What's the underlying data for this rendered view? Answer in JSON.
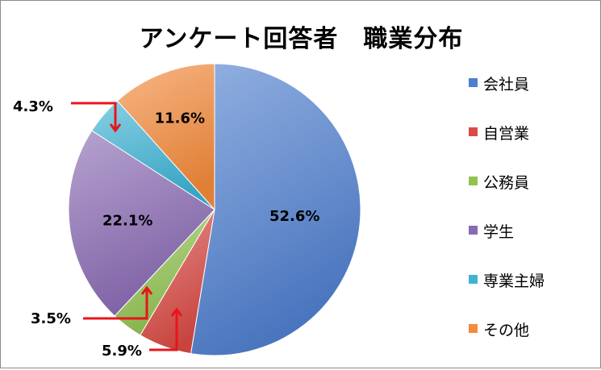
{
  "chart_data": {
    "type": "pie",
    "title": "アンケート回答者　職業分布",
    "start_angle_deg": 0,
    "direction": "clockwise",
    "slices": [
      {
        "label": "会社員",
        "value": 52.6,
        "display": "52.6%",
        "color": "#4f7fcf"
      },
      {
        "label": "自営業",
        "value": 5.9,
        "display": "5.9%",
        "color": "#d94b45"
      },
      {
        "label": "公務員",
        "value": 3.5,
        "display": "3.5%",
        "color": "#92c351"
      },
      {
        "label": "学生",
        "value": 22.1,
        "display": "22.1%",
        "color": "#8a6bb3"
      },
      {
        "label": "専業主婦",
        "value": 4.3,
        "display": "4.3%",
        "color": "#3eb3d4"
      },
      {
        "label": "その他",
        "value": 11.6,
        "display": "11.6%",
        "color": "#f38b3c"
      }
    ],
    "legend_position": "right",
    "callout_arrow_color": "#e8141c"
  }
}
